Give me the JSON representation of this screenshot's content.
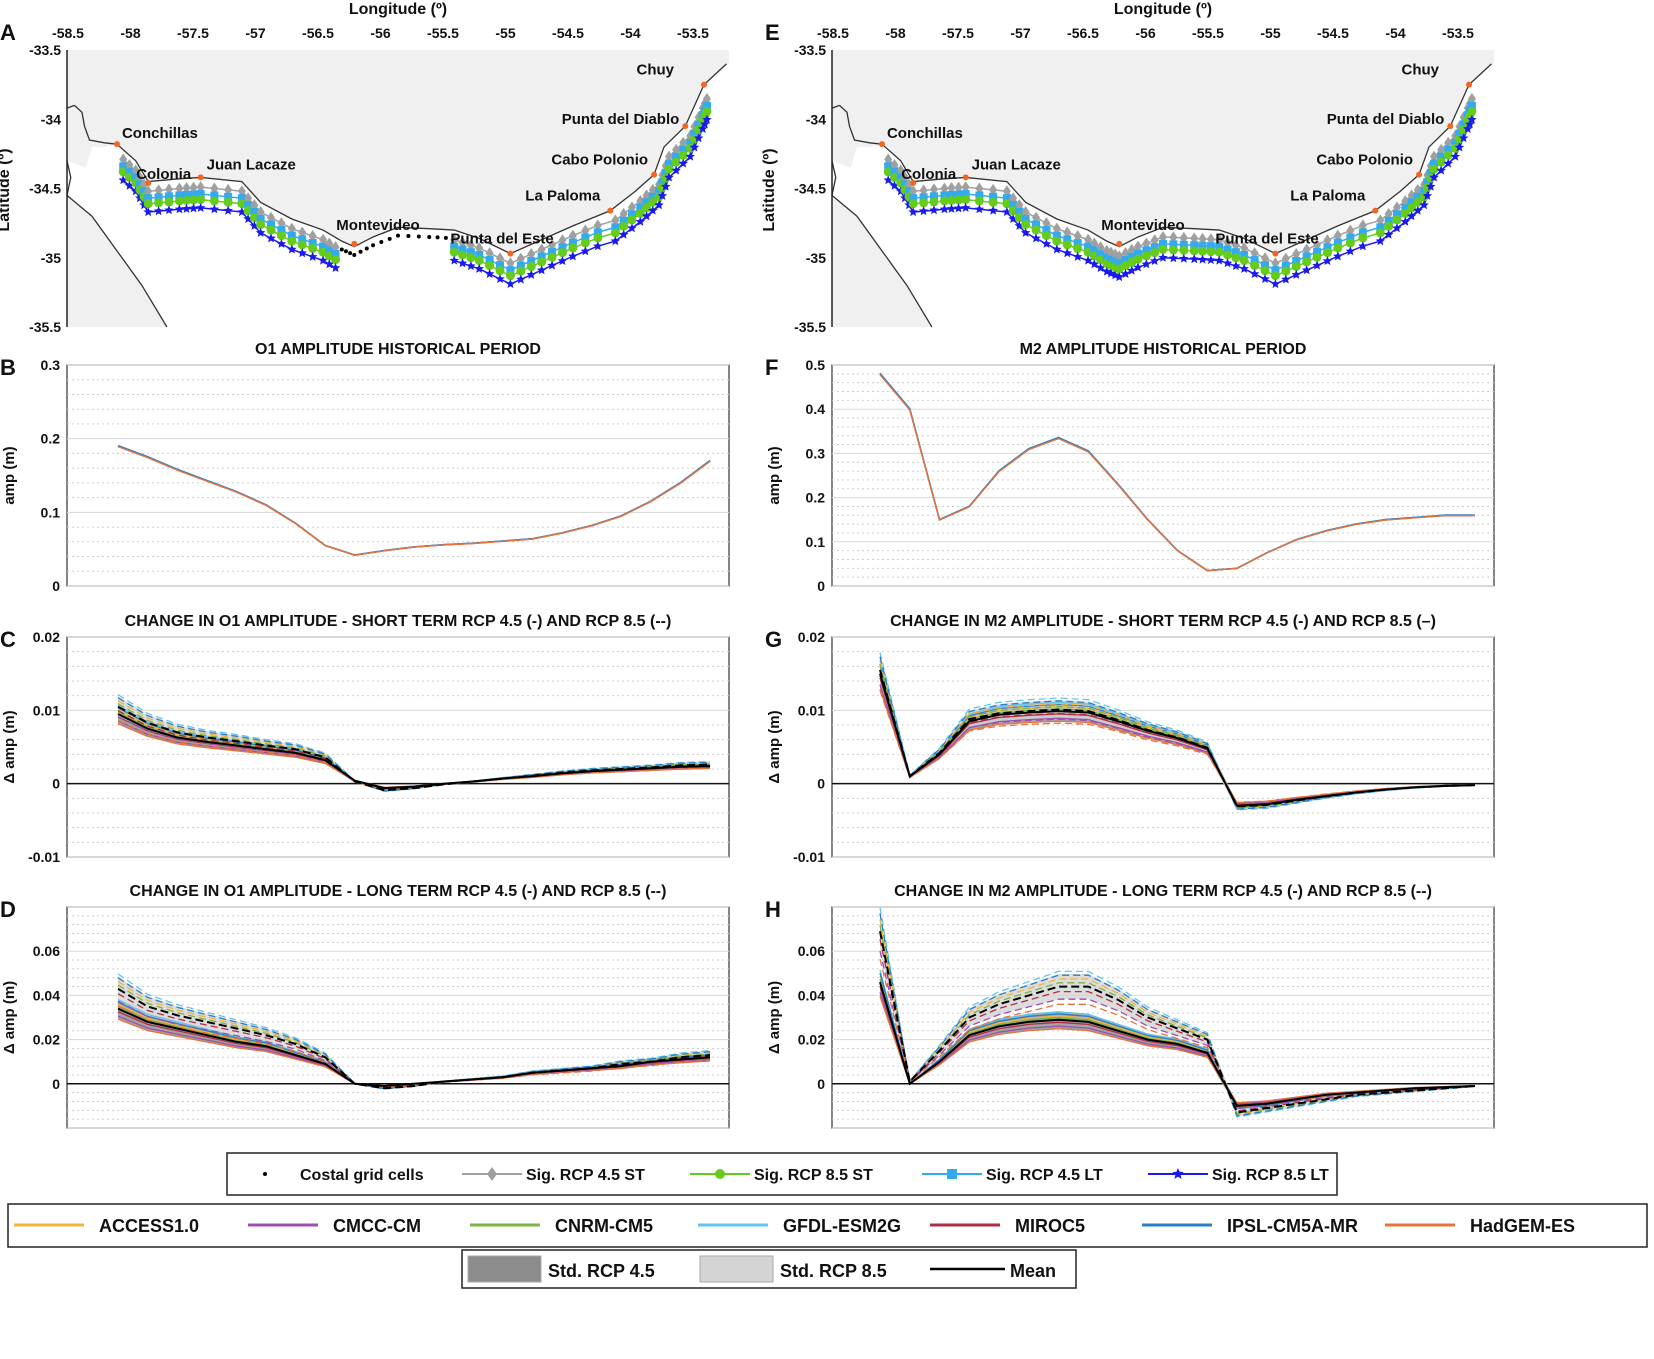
{
  "chart_data": {
    "maps": [
      {
        "letter": "A",
        "xlabel": "Longitude (º)",
        "ylabel": "Latitude (º)",
        "sig_gap_lon": [
          -56.35,
          -55.45
        ]
      },
      {
        "letter": "E",
        "xlabel": "Longitude (º)",
        "ylabel": "Latitude (º)",
        "sig_gap_lon": null
      }
    ],
    "map_axes": {
      "lon_ticks": [
        "-58.5",
        "-58",
        "-57.5",
        "-57",
        "-56.5",
        "-56",
        "-55.5",
        "-55",
        "-54.5",
        "-54",
        "-53.5"
      ],
      "lat_ticks": [
        "-33.5",
        "-34",
        "-34.5",
        "-35",
        "-35.5"
      ],
      "xlim": [
        -58.5,
        -53.2
      ],
      "ylim": [
        -35.5,
        -33.5
      ]
    },
    "coastline": [
      [
        -58.1,
        -34.18
      ],
      [
        -57.95,
        -34.3
      ],
      [
        -57.85,
        -34.45
      ],
      [
        -57.6,
        -34.43
      ],
      [
        -57.43,
        -34.42
      ],
      [
        -57.1,
        -34.45
      ],
      [
        -56.95,
        -34.6
      ],
      [
        -56.7,
        -34.72
      ],
      [
        -56.45,
        -34.8
      ],
      [
        -56.3,
        -34.88
      ],
      [
        -56.2,
        -34.92
      ],
      [
        -56.05,
        -34.85
      ],
      [
        -55.85,
        -34.78
      ],
      [
        -55.6,
        -34.79
      ],
      [
        -55.4,
        -34.8
      ],
      [
        -55.2,
        -34.86
      ],
      [
        -54.95,
        -34.97
      ],
      [
        -54.7,
        -34.87
      ],
      [
        -54.45,
        -34.77
      ],
      [
        -54.15,
        -34.66
      ],
      [
        -53.95,
        -34.52
      ],
      [
        -53.8,
        -34.4
      ],
      [
        -53.72,
        -34.2
      ],
      [
        -53.55,
        -34.05
      ],
      [
        -53.45,
        -33.85
      ],
      [
        -53.4,
        -33.75
      ],
      [
        -53.22,
        -33.6
      ]
    ],
    "cities": [
      {
        "name": "Conchillas",
        "lon": -58.1,
        "lat": -34.18
      },
      {
        "name": "Colonia",
        "lon": -57.85,
        "lat": -34.46
      },
      {
        "name": "Juan Lacaze",
        "lon": -57.43,
        "lat": -34.42
      },
      {
        "name": "Montevideo",
        "lon": -56.2,
        "lat": -34.9
      },
      {
        "name": "Punta del Este",
        "lon": -54.95,
        "lat": -34.97
      },
      {
        "name": "La Paloma",
        "lon": -54.15,
        "lat": -34.66
      },
      {
        "name": "Cabo Polonio",
        "lon": -53.8,
        "lat": -34.4
      },
      {
        "name": "Punta del Diablo",
        "lon": -53.55,
        "lat": -34.05
      },
      {
        "name": "Chuy",
        "lon": -53.4,
        "lat": -33.75
      }
    ],
    "panels": [
      {
        "letter": "B",
        "type": "line",
        "title": "O1 AMPLITUDE HISTORICAL PERIOD",
        "ylabel": "amp (m)",
        "ylim": [
          0,
          0.3
        ],
        "ticks": [
          "0",
          "0.1",
          "0.2",
          "0.3"
        ],
        "tickvals": [
          0,
          0.1,
          0.2,
          0.3
        ],
        "kind": "hist",
        "series": [
          {
            "name": "Historical",
            "values": [
              0.19,
              0.175,
              0.158,
              0.143,
              0.128,
              0.11,
              0.085,
              0.055,
              0.042,
              0.048,
              0.053,
              0.056,
              0.058,
              0.061,
              0.064,
              0.072,
              0.082,
              0.095,
              0.115,
              0.14,
              0.17
            ]
          }
        ]
      },
      {
        "letter": "C",
        "type": "line",
        "title": "CHANGE IN O1 AMPLITUDE - SHORT TERM RCP 4.5 (-) AND RCP 8.5 (--)",
        "ylabel": "Δ amp (m)",
        "ylim": [
          -0.01,
          0.02
        ],
        "ticks": [
          "-0.01",
          "0",
          "0.01",
          "0.02"
        ],
        "tickvals": [
          -0.01,
          0,
          0.01,
          0.02
        ],
        "kind": "change",
        "series": [
          {
            "name": "RCP 4.5 mean",
            "values": [
              0.0095,
              0.0075,
              0.0063,
              0.0057,
              0.0052,
              0.0047,
              0.0042,
              0.0032,
              0.0004,
              -0.0006,
              -0.0004,
              0,
              0.0003,
              0.0007,
              0.001,
              0.0014,
              0.0017,
              0.0019,
              0.0021,
              0.0023,
              0.0024
            ]
          },
          {
            "name": "RCP 8.5 mean",
            "values": [
              0.0105,
              0.0083,
              0.007,
              0.0063,
              0.0058,
              0.0052,
              0.0047,
              0.0036,
              0.0003,
              -0.0009,
              -0.0006,
              -0.0001,
              0.0003,
              0.0007,
              0.0011,
              0.0015,
              0.0018,
              0.002,
              0.0022,
              0.0025,
              0.0026
            ]
          }
        ]
      },
      {
        "letter": "D",
        "type": "line",
        "title": "CHANGE IN O1 AMPLITUDE - LONG TERM RCP 4.5 (-) AND RCP 8.5 (--)",
        "ylabel": "Δ amp (m)",
        "ylim": [
          -0.02,
          0.08
        ],
        "ticks": [
          "0",
          "0.02",
          "0.04",
          "0.06"
        ],
        "tickvals": [
          0,
          0.02,
          0.04,
          0.06
        ],
        "kind": "change",
        "series": [
          {
            "name": "RCP 4.5 mean",
            "values": [
              0.034,
              0.028,
              0.025,
              0.022,
              0.019,
              0.017,
              0.013,
              0.009,
              0.0,
              -0.001,
              0.0,
              0.001,
              0.002,
              0.003,
              0.005,
              0.006,
              0.007,
              0.008,
              0.01,
              0.011,
              0.012
            ]
          },
          {
            "name": "RCP 8.5 mean",
            "values": [
              0.043,
              0.035,
              0.031,
              0.028,
              0.025,
              0.022,
              0.018,
              0.012,
              0.0,
              -0.002,
              -0.001,
              0.001,
              0.002,
              0.003,
              0.005,
              0.006,
              0.007,
              0.009,
              0.01,
              0.012,
              0.013
            ]
          }
        ]
      },
      {
        "letter": "F",
        "type": "line",
        "title": "M2 AMPLITUDE HISTORICAL PERIOD",
        "ylabel": "amp (m)",
        "ylim": [
          0,
          0.5
        ],
        "ticks": [
          "0",
          "0.1",
          "0.2",
          "0.3",
          "0.4",
          "0.5"
        ],
        "tickvals": [
          0,
          0.1,
          0.2,
          0.3,
          0.4,
          0.5
        ],
        "kind": "hist",
        "series": [
          {
            "name": "Historical",
            "values": [
              0.48,
              0.4,
              0.15,
              0.18,
              0.26,
              0.31,
              0.335,
              0.305,
              0.23,
              0.15,
              0.08,
              0.035,
              0.04,
              0.075,
              0.105,
              0.125,
              0.14,
              0.15,
              0.155,
              0.16,
              0.16
            ]
          }
        ]
      },
      {
        "letter": "G",
        "type": "line",
        "title": "CHANGE IN M2 AMPLITUDE - SHORT TERM RCP 4.5 (-) AND RCP 8.5 (–)",
        "ylabel": "Δ amp (m)",
        "ylim": [
          -0.01,
          0.02
        ],
        "ticks": [
          "-0.01",
          "0",
          "0.01",
          "0.02"
        ],
        "tickvals": [
          -0.01,
          0,
          0.01,
          0.02
        ],
        "kind": "change",
        "series": [
          {
            "name": "RCP 4.5 mean",
            "values": [
              0.015,
              0.001,
              0.004,
              0.0085,
              0.0094,
              0.0097,
              0.0099,
              0.0097,
              0.0085,
              0.0072,
              0.0062,
              0.0048,
              -0.003,
              -0.0028,
              -0.0022,
              -0.0017,
              -0.0012,
              -0.0008,
              -0.0005,
              -0.0003,
              -0.0002
            ]
          },
          {
            "name": "RCP 8.5 mean",
            "values": [
              0.0155,
              0.001,
              0.0042,
              0.0088,
              0.0096,
              0.0099,
              0.0101,
              0.0099,
              0.0087,
              0.0073,
              0.0063,
              0.0049,
              -0.0031,
              -0.0029,
              -0.0023,
              -0.0017,
              -0.0012,
              -0.0008,
              -0.0005,
              -0.0003,
              -0.0002
            ]
          }
        ]
      },
      {
        "letter": "H",
        "type": "line",
        "title": "CHANGE IN M2 AMPLITUDE - LONG TERM RCP 4.5 (-) AND RCP 8.5 (--)",
        "ylabel": "Δ amp (m)",
        "ylim": [
          -0.02,
          0.08
        ],
        "ticks": [
          "0",
          "0.02",
          "0.04",
          "0.06"
        ],
        "tickvals": [
          0,
          0.02,
          0.04,
          0.06
        ],
        "kind": "change",
        "series": [
          {
            "name": "RCP 4.5 mean",
            "values": [
              0.046,
              0.0,
              0.01,
              0.022,
              0.026,
              0.028,
              0.029,
              0.028,
              0.024,
              0.02,
              0.018,
              0.014,
              -0.01,
              -0.009,
              -0.007,
              -0.005,
              -0.004,
              -0.003,
              -0.002,
              -0.0015,
              -0.001
            ]
          },
          {
            "name": "RCP 8.5 mean",
            "values": [
              0.069,
              0.001,
              0.015,
              0.03,
              0.036,
              0.04,
              0.044,
              0.044,
              0.038,
              0.03,
              0.025,
              0.02,
              -0.013,
              -0.011,
              -0.009,
              -0.007,
              -0.005,
              -0.004,
              -0.003,
              -0.002,
              -0.001
            ]
          }
        ]
      }
    ]
  },
  "legends": {
    "markers": [
      {
        "label": "Costal grid cells",
        "color": "#000000",
        "marker": "dot"
      },
      {
        "label": "Sig. RCP 4.5 ST",
        "color": "#a0a0a0",
        "marker": "diamond"
      },
      {
        "label": "Sig. RCP 8.5 ST",
        "color": "#66cc1a",
        "marker": "circle"
      },
      {
        "label": "Sig. RCP 4.5 LT",
        "color": "#33aaee",
        "marker": "square"
      },
      {
        "label": "Sig. RCP 8.5 LT",
        "color": "#1a1aee",
        "marker": "star"
      }
    ],
    "models": [
      {
        "label": "ACCESS1.0",
        "color": "#f2b53a"
      },
      {
        "label": "CMCC-CM",
        "color": "#9b4fb0"
      },
      {
        "label": "CNRM-CM5",
        "color": "#7cb342"
      },
      {
        "label": "GFDL-ESM2G",
        "color": "#63c5ef"
      },
      {
        "label": "MIROC5",
        "color": "#b02e45"
      },
      {
        "label": "IPSL-CM5A-MR",
        "color": "#2a7fc9"
      },
      {
        "label": "HadGEM-ES",
        "color": "#e6743a"
      }
    ],
    "stats": [
      {
        "label": "Std. RCP 4.5",
        "color": "#8c8c8c"
      },
      {
        "label": "Std. RCP 8.5",
        "color": "#d4d4d4"
      },
      {
        "label": "Mean",
        "color": "#000000"
      }
    ]
  },
  "colors": {
    "land": "#f0f0f0",
    "city": "#f26522"
  }
}
